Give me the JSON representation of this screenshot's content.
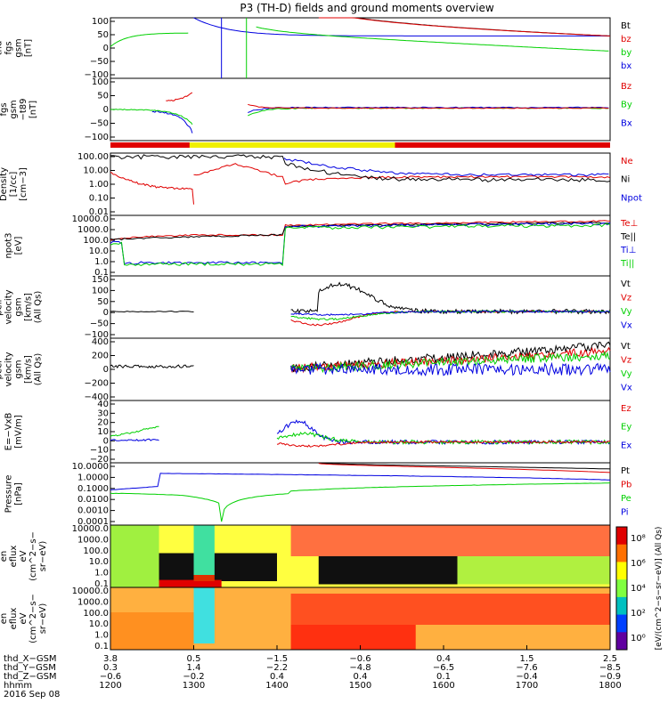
{
  "title": "P3 (TH-D) fields and ground moments overview",
  "colors": {
    "black": "#000000",
    "red": "#e00000",
    "green": "#00d000",
    "blue": "#0000e0"
  },
  "chart_data": {
    "type": "line",
    "x_range_hhmm": [
      1200,
      1800
    ],
    "panels": [
      {
        "id": "p1",
        "ylabel": [
          "thd",
          "fgs",
          "gsm",
          "[nT]"
        ],
        "yticks": [
          "100",
          "50",
          "0",
          "−50",
          "−100"
        ],
        "ylim": [
          -100,
          100
        ],
        "legend": [
          {
            "t": "Bt",
            "c": "black"
          },
          {
            "t": "bz",
            "c": "red"
          },
          {
            "t": "by",
            "c": "green"
          },
          {
            "t": "bx",
            "c": "blue"
          }
        ]
      },
      {
        "id": "p2",
        "ylabel": [
          "thd",
          "fgs",
          "gsm",
          "−t89",
          "[nT]"
        ],
        "yticks": [
          "100",
          "50",
          "0",
          "−50",
          "−100"
        ],
        "ylim": [
          -120,
          110
        ],
        "legend": [
          {
            "t": "Bz",
            "c": "red"
          },
          {
            "t": "By",
            "c": "green"
          },
          {
            "t": "Bx",
            "c": "blue"
          }
        ]
      },
      {
        "id": "p3",
        "ylabel": [
          "Density",
          "[1/cc]",
          "[cm−3]"
        ],
        "yticks": [
          "100.00",
          "10.00",
          "1.00",
          "0.10",
          "0.01"
        ],
        "ylim": [
          0.01,
          100
        ],
        "legend": [
          {
            "t": "Ne",
            "c": "red"
          },
          {
            "t": "Ni",
            "c": "black"
          },
          {
            "t": "Npot",
            "c": "blue"
          }
        ]
      },
      {
        "id": "p4",
        "ylabel": [
          "npot3",
          "[eV]"
        ],
        "yticks": [
          "10000.0",
          "1000.0",
          "100.0",
          "10.0",
          "1.0",
          "0.1"
        ],
        "ylim": [
          0.1,
          10000
        ],
        "legend": [
          {
            "t": "Te⊥",
            "c": "red"
          },
          {
            "t": "Te||",
            "c": "black"
          },
          {
            "t": "Ti⊥",
            "c": "blue"
          },
          {
            "t": "Ti||",
            "c": "green"
          }
        ]
      },
      {
        "id": "p5",
        "ylabel": [
          "thd",
          "peir",
          "velocity",
          "gsm",
          "[km/s]",
          "(All Qs)"
        ],
        "yticks": [
          "150",
          "100",
          "50",
          "0",
          "−50",
          "−100"
        ],
        "ylim": [
          -120,
          160
        ],
        "legend": [
          {
            "t": "Vt",
            "c": "black"
          },
          {
            "t": "Vz",
            "c": "red"
          },
          {
            "t": "Vy",
            "c": "green"
          },
          {
            "t": "Vx",
            "c": "blue"
          }
        ]
      },
      {
        "id": "p6",
        "ylabel": [
          "thd",
          "peer",
          "velocity",
          "gsm",
          "[km/s]",
          "(All Qs)"
        ],
        "yticks": [
          "400",
          "200",
          "0",
          "−200",
          "−400"
        ],
        "ylim": [
          -420,
          420
        ],
        "legend": [
          {
            "t": "Vt",
            "c": "black"
          },
          {
            "t": "Vz",
            "c": "red"
          },
          {
            "t": "Vy",
            "c": "green"
          },
          {
            "t": "Vx",
            "c": "blue"
          }
        ]
      },
      {
        "id": "p7",
        "ylabel": [
          "E=−VxB",
          "[mV/m]"
        ],
        "yticks": [
          "40",
          "30",
          "20",
          "10",
          "0",
          "−10",
          "−20"
        ],
        "ylim": [
          -20,
          40
        ],
        "legend": [
          {
            "t": "Ez",
            "c": "red"
          },
          {
            "t": "Ey",
            "c": "green"
          },
          {
            "t": "Ex",
            "c": "blue"
          }
        ]
      },
      {
        "id": "p8",
        "ylabel": [
          "Pressure",
          "[nPa]"
        ],
        "yticks": [
          "10.0000",
          "1.0000",
          "0.1000",
          "0.0100",
          "0.0010",
          "0.0001"
        ],
        "ylim": [
          0.0001,
          20
        ],
        "legend": [
          {
            "t": "Pt",
            "c": "black"
          },
          {
            "t": "Pb",
            "c": "red"
          },
          {
            "t": "Pe",
            "c": "green"
          },
          {
            "t": "Pi",
            "c": "blue"
          }
        ]
      },
      {
        "id": "p9",
        "ylabel": [
          "thd",
          "peir",
          "en",
          "eflux",
          "eV",
          "(cm^2−s−",
          "sr−eV)"
        ],
        "yticks": [
          "10000.0",
          "1000.0",
          "100.0",
          "10.0",
          "1.0",
          "0.1"
        ],
        "legend": []
      },
      {
        "id": "p10",
        "ylabel": [
          "thd",
          "peer",
          "en",
          "eflux",
          "eV",
          "(cm^2−s−",
          "sr−eV)"
        ],
        "yticks": [
          "10000.0",
          "1000.0",
          "100.0",
          "10.0",
          "1.0",
          "0.1"
        ],
        "legend": []
      }
    ],
    "colorbar_labels": [
      "10⁸",
      "10⁶",
      "10⁴",
      "10²",
      "10⁰"
    ],
    "colorbar_title": "[eV/(cm^2−s−sr−eV)] (All Qs)",
    "x_axis": {
      "row_labels": [
        "thd_X−GSM",
        "thd_Y−GSM",
        "thd_Z−GSM",
        "hhmm"
      ],
      "date": "2016 Sep 08",
      "columns": [
        {
          "x": 1200,
          "vals": [
            "3.8",
            "0.3",
            "−0.6",
            "1200"
          ]
        },
        {
          "x": 1300,
          "vals": [
            "0.5",
            "1.4",
            "−0.2",
            "1300"
          ]
        },
        {
          "x": 1400,
          "vals": [
            "−1.5",
            "−2.2",
            "0.4",
            "1400"
          ]
        },
        {
          "x": 1500,
          "vals": [
            "−0.6",
            "−4.8",
            "0.4",
            "1500"
          ]
        },
        {
          "x": 1600,
          "vals": [
            "0.4",
            "−6.5",
            "0.1",
            "1600"
          ]
        },
        {
          "x": 1700,
          "vals": [
            "1.5",
            "−7.6",
            "−0.4",
            "1700"
          ]
        },
        {
          "x": 1800,
          "vals": [
            "2.5",
            "−8.5",
            "−0.9",
            "1800"
          ]
        }
      ]
    }
  }
}
